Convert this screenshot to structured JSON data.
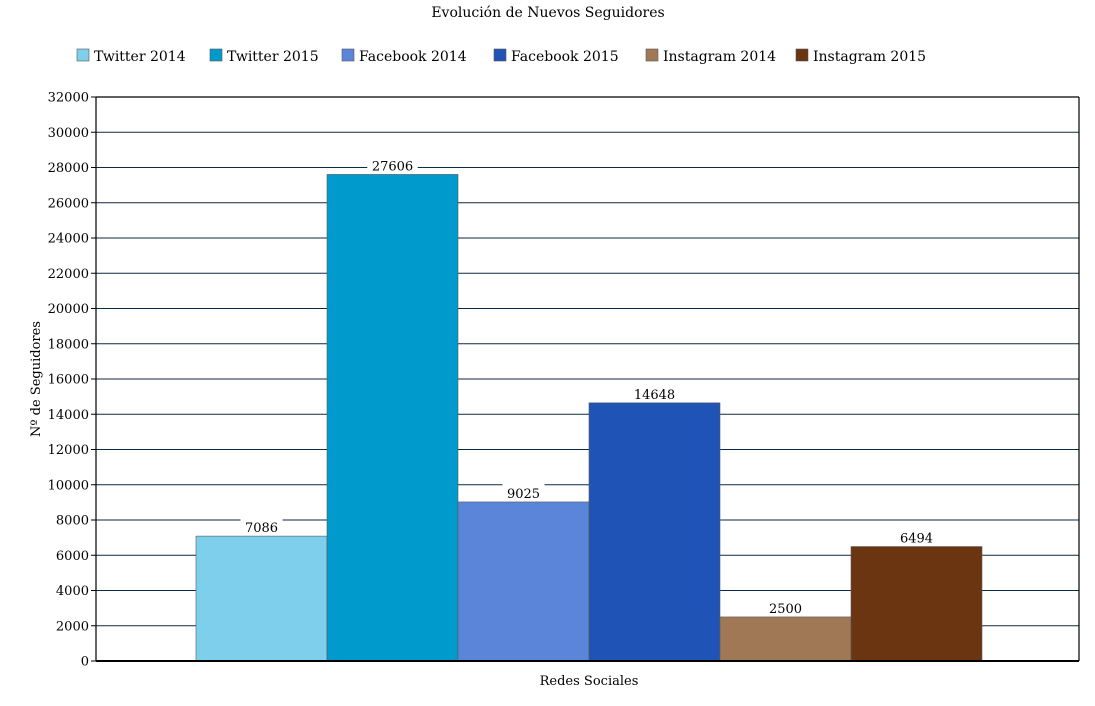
{
  "chart_data": {
    "type": "bar",
    "title": "Evolución de Nuevos Seguidores",
    "xlabel": "Redes Sociales",
    "ylabel": "Nº de Seguidores",
    "ylim": [
      0,
      32000
    ],
    "ytick_step": 2000,
    "yticks": [
      "0",
      "2000",
      "4000",
      "6000",
      "8000",
      "10000",
      "12000",
      "14000",
      "16000",
      "18000",
      "20000",
      "22000",
      "24000",
      "26000",
      "28000",
      "30000",
      "32000"
    ],
    "grid": true,
    "legend_position": "top",
    "series": [
      {
        "name": "Twitter 2014",
        "value": 7086,
        "value_label": "7086",
        "color": "#7ecfec"
      },
      {
        "name": "Twitter 2015",
        "value": 27606,
        "value_label": "27606",
        "color": "#009acd"
      },
      {
        "name": "Facebook 2014",
        "value": 9025,
        "value_label": "9025",
        "color": "#5a85d9"
      },
      {
        "name": "Facebook 2015",
        "value": 14648,
        "value_label": "14648",
        "color": "#1f54b6"
      },
      {
        "name": "Instagram 2014",
        "value": 2500,
        "value_label": "2500",
        "color": "#a07855"
      },
      {
        "name": "Instagram 2015",
        "value": 6494,
        "value_label": "6494",
        "color": "#6a3510"
      }
    ]
  }
}
